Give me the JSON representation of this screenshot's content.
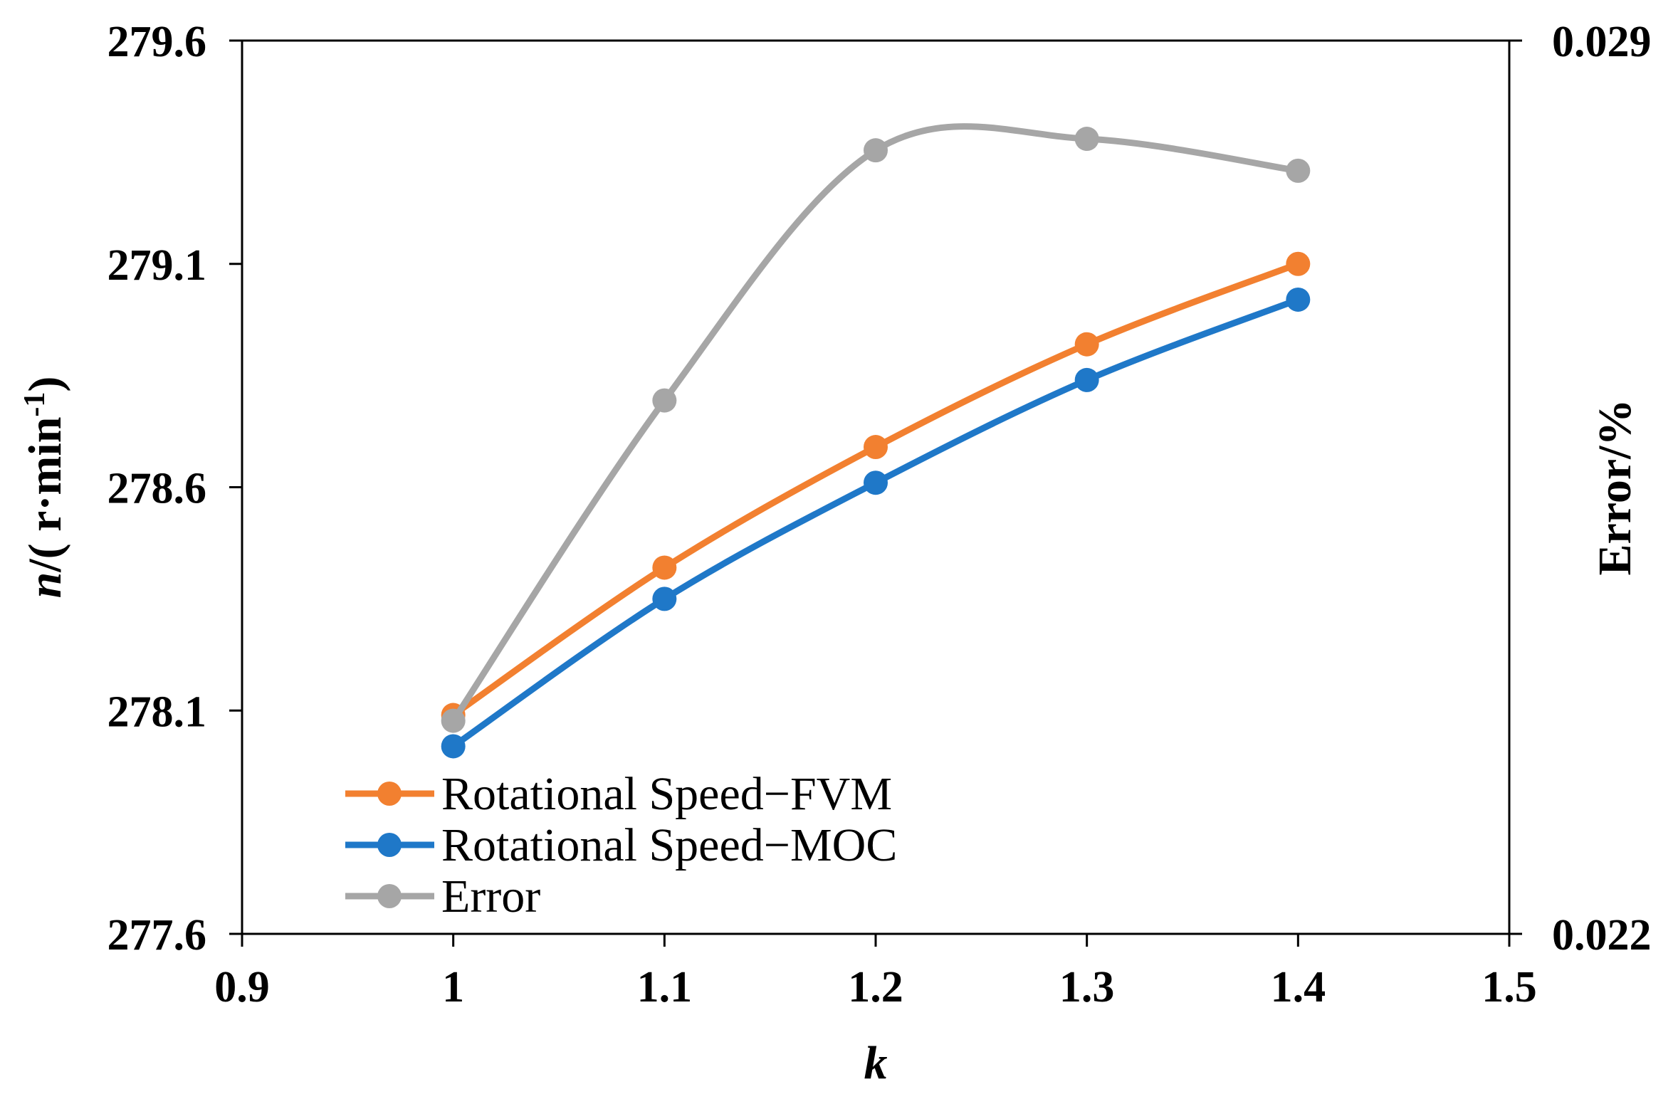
{
  "chart_data": {
    "type": "line",
    "x_axis": {
      "label_italic": "k",
      "range": [
        0.9,
        1.5
      ],
      "ticks": [
        "0.9",
        "1",
        "1.1",
        "1.2",
        "1.3",
        "1.4",
        "1.5"
      ],
      "tick_values": [
        0.9,
        1.0,
        1.1,
        1.2,
        1.3,
        1.4,
        1.5
      ]
    },
    "y_axis_left": {
      "label_italic": "n",
      "label_rest": "/( r·min",
      "label_sup": "-1",
      "label_close": ")",
      "range": [
        277.6,
        279.6
      ],
      "ticks": [
        "277.6",
        "278.1",
        "278.6",
        "279.1",
        "279.6"
      ],
      "tick_values": [
        277.6,
        278.1,
        278.6,
        279.1,
        279.6
      ]
    },
    "y_axis_right": {
      "label": "Error/%",
      "range": [
        0.022,
        0.029
      ],
      "ticks": [
        "0.022",
        "0.029"
      ],
      "tick_values": [
        0.022,
        0.029
      ]
    },
    "x": [
      1.0,
      1.1,
      1.2,
      1.3,
      1.4
    ],
    "series": [
      {
        "name": "Rotational Speed−FVM",
        "axis": "left",
        "color": "#F28030",
        "values": [
          278.09,
          278.42,
          278.69,
          278.92,
          279.1
        ]
      },
      {
        "name": "Rotational Speed−MOC",
        "axis": "left",
        "color": "#1F78C8",
        "values": [
          278.02,
          278.35,
          278.61,
          278.84,
          279.02
        ]
      },
      {
        "name": "Error",
        "axis": "right",
        "color": "#A6A6A6",
        "values": [
          0.02367,
          0.02618,
          0.02814,
          0.02823,
          0.02798
        ]
      }
    ],
    "legend_position": "bottom-left",
    "grid": false
  }
}
